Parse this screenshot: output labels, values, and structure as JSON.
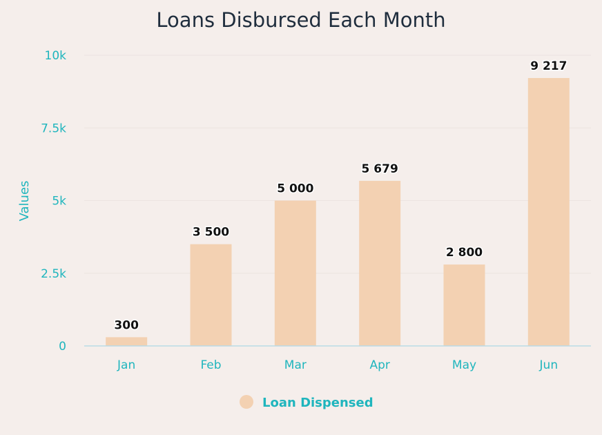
{
  "chart_data": {
    "type": "bar",
    "title": "Loans Disbursed Each Month",
    "xlabel": "",
    "ylabel": "Values",
    "ylim": [
      0,
      10000
    ],
    "yticks": [
      0,
      2500,
      5000,
      7500,
      10000
    ],
    "ytick_labels": [
      "0",
      "2.5k",
      "5k",
      "7.5k",
      "10k"
    ],
    "categories": [
      "Jan",
      "Feb",
      "Mar",
      "Apr",
      "May",
      "Jun"
    ],
    "series": [
      {
        "name": "Loan Dispensed",
        "values": [
          300,
          3500,
          5000,
          5679,
          2800,
          9217
        ],
        "value_labels": [
          "300",
          "3 500",
          "5 000",
          "5 679",
          "2 800",
          "9 217"
        ],
        "color": "#f3d1b2"
      }
    ],
    "grid": true,
    "legend": "bottom-center",
    "colors": {
      "axis_text": "#1fb5bd",
      "grid": "#ece3e0",
      "baseline": "#b9dbe6",
      "title": "#1f2d3d"
    }
  }
}
